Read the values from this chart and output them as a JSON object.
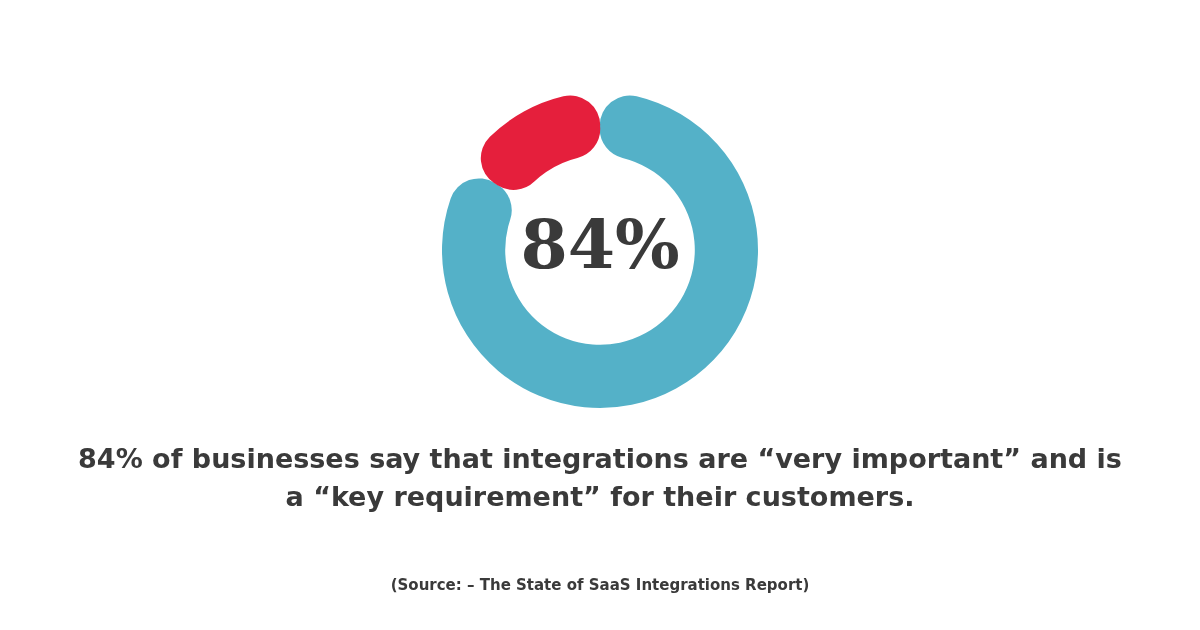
{
  "chart_data": {
    "type": "donut",
    "title": "84% of businesses say that integrations are “very important” and is a “key requirement” for their customers.",
    "categories": [
      null,
      null
    ],
    "values": [
      84,
      16
    ],
    "colors": [
      "#54b1c8",
      "#e51f3c"
    ],
    "value_labels": [
      "84%",
      null
    ],
    "annotations": [
      "(Source: – The State of SaaS Integrations Report)"
    ]
  }
}
